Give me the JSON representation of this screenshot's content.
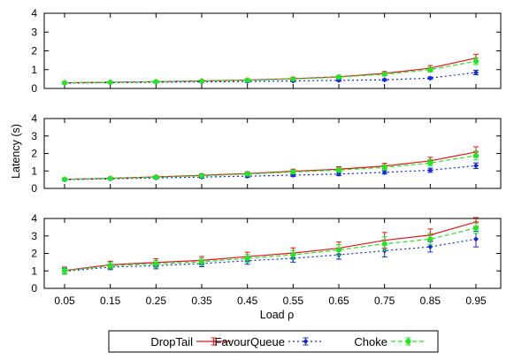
{
  "chart_data": {
    "type": "line",
    "x": [
      0.05,
      0.15,
      0.25,
      0.35,
      0.45,
      0.55,
      0.65,
      0.75,
      0.85,
      0.95
    ],
    "xtick_labels": [
      "0.05",
      "0.15",
      "0.25",
      "0.35",
      "0.45",
      "0.55",
      "0.65",
      "0.75",
      "0.85",
      "0.95"
    ],
    "xlabel": "Load ρ",
    "ylabel": "Latency (s)",
    "ylim": [
      0,
      4
    ],
    "yticks": [
      0,
      1,
      2,
      3,
      4
    ],
    "grid": false,
    "legend": "bottom",
    "series_styles": [
      {
        "name": "DropTail",
        "color": "#e8141c",
        "dash": "",
        "marker": "plus"
      },
      {
        "name": "FavourQueue",
        "color": "#1428e0",
        "dash": "2,3",
        "marker": "diamond"
      },
      {
        "name": "Choke",
        "color": "#1ee81e",
        "dash": "5,3",
        "marker": "circle"
      }
    ],
    "panels": [
      {
        "series": [
          {
            "name": "DropTail",
            "values": [
              0.3,
              0.33,
              0.36,
              0.4,
              0.45,
              0.52,
              0.62,
              0.8,
              1.08,
              1.62
            ],
            "err": [
              0.03,
              0.03,
              0.04,
              0.04,
              0.05,
              0.06,
              0.07,
              0.1,
              0.14,
              0.2
            ]
          },
          {
            "name": "FavourQueue",
            "values": [
              0.28,
              0.31,
              0.33,
              0.35,
              0.37,
              0.4,
              0.43,
              0.46,
              0.55,
              0.85
            ],
            "err": [
              0.03,
              0.03,
              0.03,
              0.03,
              0.04,
              0.04,
              0.05,
              0.05,
              0.06,
              0.12
            ]
          },
          {
            "name": "Choke",
            "values": [
              0.3,
              0.33,
              0.36,
              0.39,
              0.44,
              0.5,
              0.6,
              0.76,
              1.0,
              1.45
            ],
            "err": [
              0.03,
              0.03,
              0.04,
              0.04,
              0.05,
              0.06,
              0.07,
              0.08,
              0.12,
              0.18
            ]
          }
        ]
      },
      {
        "series": [
          {
            "name": "DropTail",
            "values": [
              0.52,
              0.58,
              0.66,
              0.75,
              0.85,
              0.98,
              1.1,
              1.28,
              1.58,
              2.08
            ],
            "err": [
              0.05,
              0.06,
              0.07,
              0.08,
              0.1,
              0.12,
              0.14,
              0.16,
              0.2,
              0.3
            ]
          },
          {
            "name": "FavourQueue",
            "values": [
              0.5,
              0.55,
              0.6,
              0.65,
              0.7,
              0.76,
              0.82,
              0.92,
              1.04,
              1.3
            ],
            "err": [
              0.05,
              0.05,
              0.06,
              0.06,
              0.07,
              0.08,
              0.09,
              0.1,
              0.12,
              0.16
            ]
          },
          {
            "name": "Choke",
            "values": [
              0.52,
              0.57,
              0.64,
              0.72,
              0.82,
              0.94,
              1.05,
              1.2,
              1.46,
              1.88
            ],
            "err": [
              0.05,
              0.06,
              0.07,
              0.08,
              0.09,
              0.11,
              0.13,
              0.15,
              0.18,
              0.25
            ]
          }
        ]
      },
      {
        "series": [
          {
            "name": "DropTail",
            "values": [
              1.02,
              1.35,
              1.48,
              1.6,
              1.82,
              2.02,
              2.3,
              2.75,
              3.05,
              3.8
            ],
            "err": [
              0.2,
              0.2,
              0.22,
              0.22,
              0.25,
              0.3,
              0.35,
              0.45,
              0.35,
              0.25
            ]
          },
          {
            "name": "FavourQueue",
            "values": [
              0.98,
              1.22,
              1.3,
              1.42,
              1.58,
              1.72,
              1.92,
              2.15,
              2.38,
              2.82
            ],
            "err": [
              0.15,
              0.15,
              0.18,
              0.18,
              0.2,
              0.22,
              0.25,
              0.35,
              0.3,
              0.45
            ]
          },
          {
            "name": "Choke",
            "values": [
              1.0,
              1.3,
              1.4,
              1.52,
              1.72,
              1.92,
              2.2,
              2.55,
              2.82,
              3.45
            ],
            "err": [
              0.18,
              0.18,
              0.2,
              0.2,
              0.22,
              0.25,
              0.3,
              0.4,
              0.32,
              0.3
            ]
          }
        ]
      }
    ]
  }
}
